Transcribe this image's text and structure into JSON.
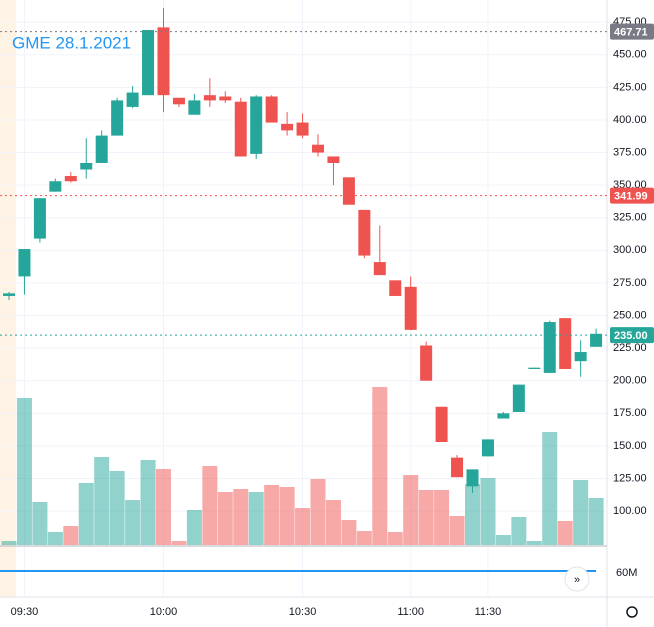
{
  "chart_data": {
    "type": "candlestick",
    "title": "GME 28.1.2021",
    "categories": [
      null,
      "09:30",
      null,
      null,
      null,
      null,
      null,
      null,
      null,
      null,
      "10:00",
      null,
      null,
      null,
      null,
      null,
      null,
      null,
      null,
      "10:30",
      null,
      null,
      null,
      null,
      null,
      null,
      "11:00",
      null,
      null,
      null,
      null,
      "11:30",
      null,
      null,
      null,
      null,
      null,
      null,
      null
    ],
    "open": [
      265,
      280,
      309,
      345,
      357,
      362,
      367,
      388,
      410,
      419,
      471,
      417,
      404,
      419,
      418,
      414,
      374,
      418,
      397,
      398,
      381,
      372,
      356,
      331,
      291,
      277,
      272,
      227,
      180,
      141,
      119,
      142,
      171,
      176,
      209,
      206,
      248,
      215,
      226
    ],
    "high": [
      268,
      301,
      340,
      355,
      360,
      386,
      392,
      417,
      426,
      469,
      486,
      417,
      420,
      432,
      422,
      417,
      419,
      419,
      406,
      405,
      389,
      372,
      356,
      331,
      319,
      277,
      280,
      230,
      180,
      143,
      132,
      155,
      176,
      197,
      210,
      246,
      248,
      231,
      240
    ],
    "low": [
      262,
      266,
      306,
      345,
      352,
      355,
      367,
      388,
      409,
      419,
      406,
      410,
      404,
      410,
      413,
      372,
      370,
      398,
      388,
      386,
      372,
      350,
      335,
      294,
      281,
      265,
      239,
      200,
      153,
      126,
      114,
      142,
      171,
      176,
      209,
      206,
      209,
      203,
      226
    ],
    "close": [
      267,
      301,
      340,
      353,
      353,
      367,
      388,
      415,
      421,
      469,
      419,
      412,
      415,
      415,
      415,
      372,
      418,
      398,
      392,
      388,
      375,
      367,
      335,
      296,
      281,
      265,
      239,
      200,
      153,
      126,
      132,
      155,
      175,
      197,
      210,
      245,
      209,
      222,
      236
    ],
    "volume": [
      4,
      147,
      43,
      13,
      19,
      62,
      88,
      74,
      45,
      85,
      76,
      4,
      35,
      79,
      53,
      56,
      53,
      60,
      58,
      37,
      66,
      45,
      25,
      14,
      158,
      13,
      70,
      55,
      55,
      29,
      61,
      67,
      10,
      28,
      4,
      113,
      24,
      65,
      47
    ],
    "up_color": "#26a69a",
    "down_color": "#ef5350",
    "ylim": [
      74,
      492
    ],
    "yticks": [
      {
        "value": 100,
        "label": "100.00"
      },
      {
        "value": 125,
        "label": "125.00"
      },
      {
        "value": 150,
        "label": "150.00"
      },
      {
        "value": 175,
        "label": "175.00"
      },
      {
        "value": 200,
        "label": "200.00"
      },
      {
        "value": 225,
        "label": "225.00"
      },
      {
        "value": 250,
        "label": "250.00"
      },
      {
        "value": 275,
        "label": "275.00"
      },
      {
        "value": 300,
        "label": "300.00"
      },
      {
        "value": 325,
        "label": "325.00"
      },
      {
        "value": 350,
        "label": "350.00"
      },
      {
        "value": 375,
        "label": "375.00"
      },
      {
        "value": 400,
        "label": "400.00"
      },
      {
        "value": 425,
        "label": "425.00"
      },
      {
        "value": 450,
        "label": "450.00"
      },
      {
        "value": 475,
        "label": "475.00"
      }
    ],
    "price_labels": [
      {
        "value": 467.71,
        "label": "467.71",
        "color": "#787b86"
      },
      {
        "value": 341.99,
        "label": "341.99",
        "color": "#ef5350"
      },
      {
        "value": 235,
        "label": "235.00",
        "color": "#26a69a"
      }
    ],
    "indicator_ticks": [
      {
        "value": 60000000,
        "label": "60M"
      }
    ],
    "grid": true
  }
}
